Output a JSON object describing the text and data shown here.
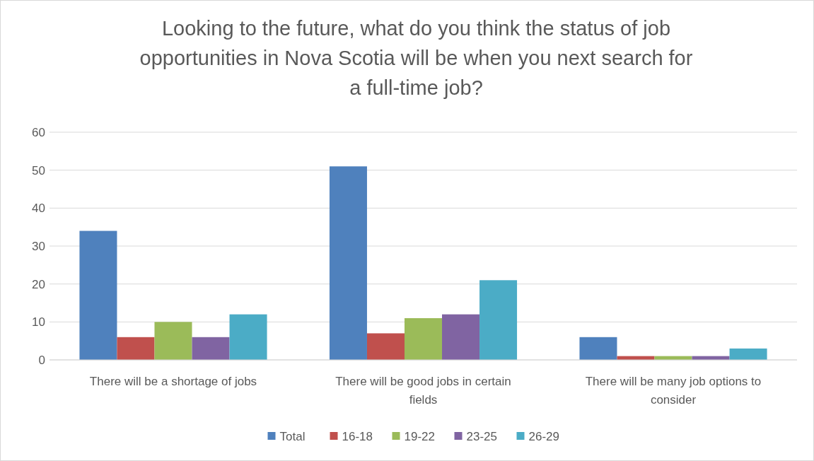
{
  "chart_data": {
    "type": "bar",
    "title": "Looking to the future, what do you think the status of job opportunities in Nova Scotia will be when you next search for a full-time job?",
    "categories": [
      "There will be a shortage of jobs",
      "There will be good jobs in certain fields",
      "There will be many job options to consider"
    ],
    "series": [
      {
        "name": "Total",
        "color": "#4f81bd",
        "values": [
          34,
          51,
          6
        ]
      },
      {
        "name": "16-18",
        "color": "#c0504d",
        "values": [
          6,
          7,
          1
        ]
      },
      {
        "name": "19-22",
        "color": "#9bbb59",
        "values": [
          10,
          11,
          1
        ]
      },
      {
        "name": "23-25",
        "color": "#8064a2",
        "values": [
          6,
          12,
          1
        ]
      },
      {
        "name": "26-29",
        "color": "#4bacc6",
        "values": [
          12,
          21,
          3
        ]
      }
    ],
    "ylim": [
      0,
      60
    ],
    "yticks": [
      0,
      10,
      20,
      30,
      40,
      50,
      60
    ],
    "grid": "y",
    "legend": "bottom"
  }
}
